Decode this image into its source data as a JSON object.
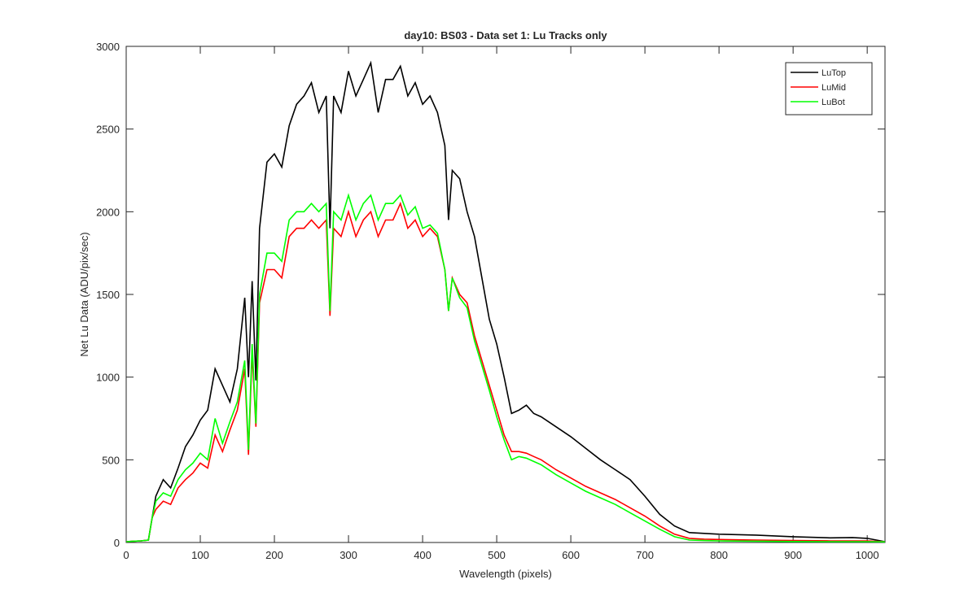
{
  "chart_data": {
    "type": "line",
    "title": "day10: BS03 - Data set 1: Lu Tracks only",
    "xlabel": "Wavelength (pixels)",
    "ylabel": "Net Lu Data (ADU/pix/sec)",
    "x": [
      0,
      10,
      20,
      30,
      35,
      40,
      50,
      60,
      70,
      80,
      90,
      100,
      110,
      120,
      130,
      140,
      150,
      160,
      165,
      170,
      175,
      180,
      190,
      200,
      210,
      220,
      230,
      240,
      250,
      260,
      270,
      275,
      280,
      290,
      300,
      310,
      320,
      330,
      340,
      350,
      360,
      370,
      380,
      390,
      400,
      410,
      420,
      430,
      435,
      440,
      450,
      460,
      470,
      480,
      490,
      500,
      510,
      520,
      530,
      540,
      550,
      560,
      580,
      600,
      620,
      640,
      660,
      680,
      700,
      720,
      740,
      760,
      780,
      800,
      850,
      900,
      950,
      980,
      1000,
      1024
    ],
    "series": [
      {
        "name": "LuTop",
        "color": "#000000",
        "values": [
          5,
          8,
          10,
          15,
          150,
          280,
          380,
          330,
          450,
          580,
          650,
          740,
          800,
          1050,
          950,
          850,
          1050,
          1480,
          1000,
          1580,
          980,
          1900,
          2300,
          2350,
          2270,
          2520,
          2650,
          2700,
          2780,
          2600,
          2700,
          1900,
          2700,
          2600,
          2850,
          2700,
          2800,
          2900,
          2600,
          2800,
          2800,
          2880,
          2700,
          2780,
          2650,
          2700,
          2600,
          2400,
          1950,
          2250,
          2200,
          2000,
          1850,
          1600,
          1350,
          1200,
          1000,
          780,
          800,
          830,
          780,
          760,
          700,
          640,
          570,
          500,
          440,
          380,
          280,
          170,
          100,
          60,
          55,
          50,
          45,
          35,
          28,
          30,
          25,
          5
        ]
      },
      {
        "name": "LuMid",
        "color": "#ff0000",
        "values": [
          5,
          8,
          10,
          15,
          150,
          200,
          250,
          230,
          330,
          380,
          420,
          480,
          450,
          650,
          550,
          680,
          800,
          1050,
          530,
          1150,
          700,
          1450,
          1650,
          1650,
          1600,
          1850,
          1900,
          1900,
          1950,
          1900,
          1950,
          1370,
          1900,
          1850,
          2000,
          1850,
          1950,
          2000,
          1850,
          1950,
          1950,
          2050,
          1900,
          1950,
          1850,
          1900,
          1850,
          1650,
          1400,
          1600,
          1500,
          1450,
          1250,
          1100,
          950,
          800,
          650,
          550,
          550,
          540,
          520,
          500,
          440,
          390,
          340,
          300,
          260,
          210,
          160,
          100,
          50,
          25,
          20,
          18,
          15,
          12,
          10,
          10,
          10,
          5
        ]
      },
      {
        "name": "LuBot",
        "color": "#00ff00",
        "values": [
          5,
          8,
          10,
          15,
          150,
          250,
          300,
          280,
          380,
          440,
          480,
          540,
          500,
          750,
          600,
          730,
          850,
          1100,
          560,
          1200,
          720,
          1500,
          1750,
          1750,
          1700,
          1950,
          2000,
          2000,
          2050,
          2000,
          2050,
          1400,
          2000,
          1950,
          2100,
          1950,
          2050,
          2100,
          1950,
          2050,
          2050,
          2100,
          1980,
          2030,
          1900,
          1920,
          1870,
          1650,
          1400,
          1600,
          1480,
          1420,
          1220,
          1070,
          920,
          760,
          620,
          500,
          520,
          510,
          490,
          470,
          410,
          360,
          310,
          270,
          230,
          180,
          130,
          80,
          35,
          15,
          12,
          10,
          8,
          6,
          5,
          5,
          5,
          4
        ]
      }
    ],
    "xlim": [
      0,
      1024
    ],
    "ylim": [
      0,
      3000
    ],
    "xticks": [
      0,
      100,
      200,
      300,
      400,
      500,
      600,
      700,
      800,
      900,
      1000
    ],
    "yticks": [
      0,
      500,
      1000,
      1500,
      2000,
      2500,
      3000
    ],
    "legend": "upper right"
  }
}
